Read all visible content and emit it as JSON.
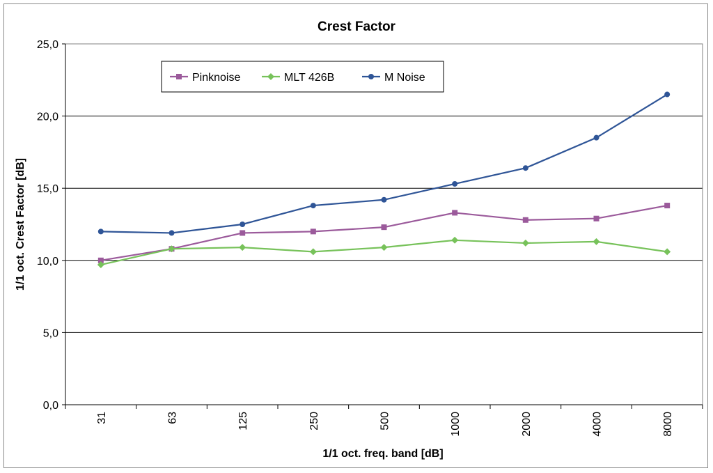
{
  "chart_data": {
    "type": "line",
    "title": "Crest Factor",
    "xlabel": "1/1 oct. freq. band [dB]",
    "ylabel": "1/1 oct. Crest Factor [dB]",
    "categories": [
      "31",
      "63",
      "125",
      "250",
      "500",
      "1000",
      "2000",
      "4000",
      "8000"
    ],
    "ylim": [
      0,
      25
    ],
    "yticks": [
      0,
      5,
      10,
      15,
      20,
      25
    ],
    "ytick_labels": [
      "0,0",
      "5,0",
      "10,0",
      "15,0",
      "20,0",
      "25,0"
    ],
    "grid": true,
    "legend": "top-left",
    "series": [
      {
        "name": "Pinknoise",
        "color": "#9b5a9b",
        "marker": "square",
        "values": [
          10.0,
          10.8,
          11.9,
          12.0,
          12.3,
          13.3,
          12.8,
          12.9,
          13.8
        ]
      },
      {
        "name": "MLT 426B",
        "color": "#77c25a",
        "marker": "diamond",
        "values": [
          9.7,
          10.8,
          10.9,
          10.6,
          10.9,
          11.4,
          11.2,
          11.3,
          10.6
        ]
      },
      {
        "name": "M Noise",
        "color": "#2f5597",
        "marker": "circle",
        "values": [
          12.0,
          11.9,
          12.5,
          13.8,
          14.2,
          15.3,
          16.4,
          18.5,
          21.5
        ]
      }
    ]
  }
}
